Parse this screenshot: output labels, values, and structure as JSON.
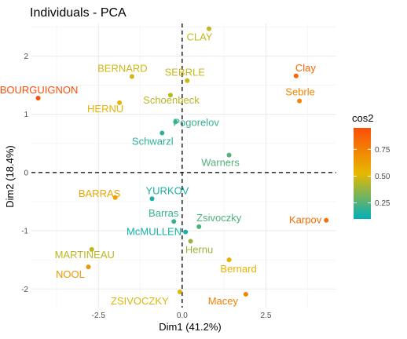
{
  "chart_data": {
    "type": "scatter",
    "title": "Individuals - PCA",
    "xlabel": "Dim1 (41.2%)",
    "ylabel": "Dim2 (18.4%)",
    "xlim": [
      -4.5,
      4.6
    ],
    "ylim": [
      -2.32,
      2.56
    ],
    "x_ticks": [
      -2.5,
      0.0,
      2.5
    ],
    "x_tick_labels": [
      "-2.5",
      "0.0",
      "2.5"
    ],
    "y_ticks": [
      -2,
      -1,
      0,
      1,
      2
    ],
    "y_tick_labels": [
      "-2",
      "-1",
      "0",
      "1",
      "2"
    ],
    "grid": true,
    "reference_lines": {
      "x": 0,
      "y": 0,
      "style": "dashed"
    },
    "legend": {
      "title": "cos2",
      "placement": "right",
      "type": "gradient",
      "range": [
        0.1,
        0.95
      ],
      "ticks": [
        0.25,
        0.5,
        0.75
      ],
      "tick_labels": [
        "0.25",
        "0.50",
        "0.75"
      ],
      "colors": [
        "#00AFBB",
        "#E7B800",
        "#FC4E07"
      ]
    },
    "points": [
      {
        "label": "BOURGUIGNON",
        "x": -4.3,
        "y": 1.28,
        "cos2": 0.95
      },
      {
        "label": "BERNARD",
        "x": -1.5,
        "y": 1.65,
        "cos2": 0.48
      },
      {
        "label": "HERNU",
        "x": -1.87,
        "y": 1.2,
        "cos2": 0.55
      },
      {
        "label": "Schoenbeck",
        "x": -0.35,
        "y": 1.33,
        "cos2": 0.44
      },
      {
        "label": "CLAY",
        "x": 0.8,
        "y": 2.47,
        "cos2": 0.46
      },
      {
        "label": "SEBRLE",
        "x": 0.15,
        "y": 1.58,
        "cos2": 0.47
      },
      {
        "label": "Clay",
        "x": 3.4,
        "y": 1.66,
        "cos2": 0.85
      },
      {
        "label": "Sebrle",
        "x": 3.5,
        "y": 1.23,
        "cos2": 0.72
      },
      {
        "label": "Pogorelov",
        "x": -0.2,
        "y": 0.87,
        "cos2": 0.2
      },
      {
        "label": "Schwarzl",
        "x": -0.6,
        "y": 0.68,
        "cos2": 0.18
      },
      {
        "label": "Warners",
        "x": 1.4,
        "y": 0.3,
        "cos2": 0.25
      },
      {
        "label": "BARRAS",
        "x": -2.0,
        "y": -0.43,
        "cos2": 0.6
      },
      {
        "label": "YURKOV",
        "x": -0.9,
        "y": -0.45,
        "cos2": 0.15
      },
      {
        "label": "Karpov",
        "x": 4.3,
        "y": -0.82,
        "cos2": 0.82
      },
      {
        "label": "Barras",
        "x": -0.25,
        "y": -0.84,
        "cos2": 0.2
      },
      {
        "label": "Zsivoczky",
        "x": 0.5,
        "y": -0.93,
        "cos2": 0.24
      },
      {
        "label": "McMULLEN",
        "x": 0.1,
        "y": -1.02,
        "cos2": 0.14
      },
      {
        "label": "Hernu",
        "x": 0.25,
        "y": -1.18,
        "cos2": 0.38
      },
      {
        "label": "MARTINEAU",
        "x": -2.7,
        "y": -1.32,
        "cos2": 0.45
      },
      {
        "label": "Bernard",
        "x": 1.4,
        "y": -1.5,
        "cos2": 0.55
      },
      {
        "label": "NOOL",
        "x": -2.8,
        "y": -1.62,
        "cos2": 0.65
      },
      {
        "label": "ZSIVOCZKY",
        "x": -0.07,
        "y": -2.05,
        "cos2": 0.5
      },
      {
        "label": "Macey",
        "x": 1.9,
        "y": -2.09,
        "cos2": 0.75
      }
    ]
  }
}
